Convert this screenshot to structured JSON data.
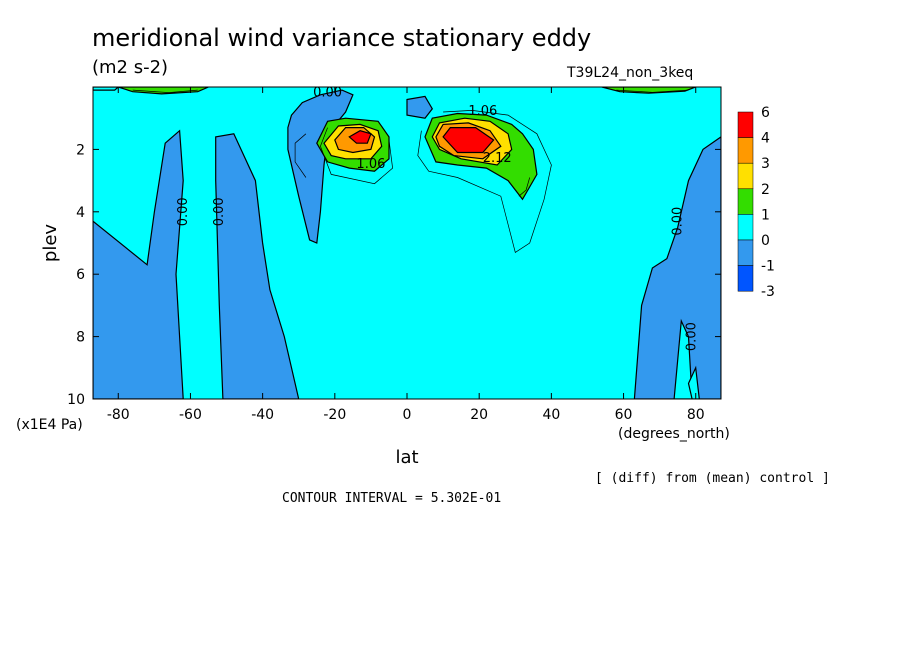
{
  "title": "meridional wind variance  stationary eddy",
  "units": "(m2 s-2)",
  "run_label": "T39L24_non_3keq",
  "footer_note": "[ (diff) from (mean) control ]",
  "contour_interval_text": "CONTOUR INTERVAL = 5.302E-01",
  "chart_data": {
    "type": "heatmap",
    "xlabel": "lat",
    "x_unit": "(degrees_north)",
    "ylabel": "plev",
    "y_unit": "(x1E4 Pa)",
    "xlim": [
      -87,
      87
    ],
    "ylim": [
      10,
      0
    ],
    "x_ticks": [
      -80,
      -60,
      -40,
      -20,
      0,
      20,
      40,
      60,
      80
    ],
    "x_tick_labels": [
      "-80",
      "-60",
      "-40",
      "-20",
      "0",
      "20",
      "40",
      "60",
      "80"
    ],
    "y_ticks": [
      2,
      4,
      6,
      8,
      10
    ],
    "y_tick_labels": [
      "2",
      "4",
      "6",
      "8",
      "10"
    ],
    "contour_interval": 0.5302,
    "colorbar": {
      "boundaries": [
        "6",
        "4",
        "3",
        "2",
        "1",
        "0",
        "-1",
        "-3"
      ],
      "colors": [
        "#ff0000",
        "#ff9900",
        "#ffe000",
        "#33dd00",
        "#00ffff",
        "#3399ee",
        "#0055ff"
      ]
    },
    "contour_labels": [
      {
        "text": "0.00",
        "x": -22,
        "y": 0.3
      },
      {
        "text": "1.06",
        "x": 21,
        "y": 0.9
      },
      {
        "text": "1.06",
        "x": -10,
        "y": 2.6
      },
      {
        "text": "2.12",
        "x": 25,
        "y": 2.4
      },
      {
        "text": "0.00",
        "x": -61,
        "y": 4.0
      },
      {
        "text": "0.00",
        "x": -51,
        "y": 4.0
      },
      {
        "text": "0.00",
        "x": 76,
        "y": 4.3
      },
      {
        "text": "0.00",
        "x": 80,
        "y": 8.0
      }
    ],
    "regions": [
      {
        "level": "-1..0",
        "color": "#3399ee",
        "polygon": [
          [
            -87,
            4.3
          ],
          [
            -72,
            5.7
          ],
          [
            -70,
            4
          ],
          [
            -67,
            1.8
          ],
          [
            -63,
            1.4
          ],
          [
            -62,
            3
          ],
          [
            -64,
            6
          ],
          [
            -63,
            8
          ],
          [
            -62,
            10
          ],
          [
            -87,
            10
          ]
        ]
      },
      {
        "level": "-1..0",
        "color": "#3399ee",
        "polygon": [
          [
            -51,
            10
          ],
          [
            -52,
            7
          ],
          [
            -53,
            3
          ],
          [
            -53,
            1.6
          ],
          [
            -48,
            1.5
          ],
          [
            -42,
            3
          ],
          [
            -40,
            5
          ],
          [
            -38,
            6.5
          ],
          [
            -34,
            8
          ],
          [
            -30,
            10
          ]
        ]
      },
      {
        "level": "-1..0",
        "color": "#3399ee",
        "polygon": [
          [
            -32,
            0.9
          ],
          [
            -29,
            0.5
          ],
          [
            -24,
            0.25
          ],
          [
            -18,
            0.1
          ],
          [
            -15,
            0.25
          ],
          [
            -17,
            0.8
          ],
          [
            -22,
            1.5
          ],
          [
            -23,
            2.5
          ],
          [
            -24,
            4
          ],
          [
            -25,
            5.0
          ],
          [
            -27,
            4.9
          ],
          [
            -30,
            3.5
          ],
          [
            -33,
            2
          ],
          [
            -33,
            1.3
          ]
        ]
      },
      {
        "level": "-1..0",
        "color": "#3399ee",
        "polygon": [
          [
            0,
            0.4
          ],
          [
            5,
            0.3
          ],
          [
            7,
            0.7
          ],
          [
            5,
            1.0
          ],
          [
            0,
            0.9
          ]
        ]
      },
      {
        "level": "-1..0",
        "color": "#3399ee",
        "polygon": [
          [
            87,
            1.6
          ],
          [
            82,
            2
          ],
          [
            78,
            3
          ],
          [
            75,
            4.5
          ],
          [
            72,
            5.5
          ],
          [
            68,
            5.8
          ],
          [
            65,
            7
          ],
          [
            63,
            10
          ],
          [
            87,
            10
          ]
        ]
      },
      {
        "level": "0..1",
        "color": "#00ffff",
        "polygon": [
          [
            74,
            10
          ],
          [
            76,
            7.5
          ],
          [
            78,
            8
          ],
          [
            79,
            10
          ]
        ]
      },
      {
        "level": "0..1",
        "color": "#00ffff",
        "polygon": [
          [
            79,
            10
          ],
          [
            78,
            9.5
          ],
          [
            80,
            9.0
          ],
          [
            81,
            10
          ]
        ]
      },
      {
        "level": "1..2",
        "color": "#33dd00",
        "polygon": [
          [
            -25,
            1.8
          ],
          [
            -22,
            1.1
          ],
          [
            -17,
            1.0
          ],
          [
            -8,
            1.1
          ],
          [
            -5,
            1.6
          ],
          [
            -5,
            2.3
          ],
          [
            -9,
            2.7
          ],
          [
            -16,
            2.6
          ],
          [
            -22,
            2.4
          ]
        ]
      },
      {
        "level": "2..3",
        "color": "#ffe000",
        "polygon": [
          [
            -23,
            1.8
          ],
          [
            -19,
            1.25
          ],
          [
            -13,
            1.2
          ],
          [
            -8,
            1.4
          ],
          [
            -7,
            1.9
          ],
          [
            -10,
            2.3
          ],
          [
            -17,
            2.3
          ],
          [
            -21,
            2.2
          ]
        ]
      },
      {
        "level": "3..4",
        "color": "#ff9900",
        "polygon": [
          [
            -20,
            1.7
          ],
          [
            -17,
            1.3
          ],
          [
            -12,
            1.3
          ],
          [
            -9,
            1.6
          ],
          [
            -10,
            2.0
          ],
          [
            -15,
            2.1
          ],
          [
            -19,
            2.0
          ]
        ]
      },
      {
        "level": "4..6",
        "color": "#ff0000",
        "polygon": [
          [
            -16,
            1.6
          ],
          [
            -13,
            1.4
          ],
          [
            -10,
            1.5
          ],
          [
            -11,
            1.8
          ],
          [
            -14,
            1.8
          ]
        ]
      },
      {
        "level": "1..2",
        "color": "#33dd00",
        "polygon": [
          [
            5,
            1.6
          ],
          [
            7,
            1.0
          ],
          [
            14,
            0.85
          ],
          [
            22,
            0.9
          ],
          [
            29,
            1.2
          ],
          [
            32,
            1.5
          ],
          [
            35,
            2.0
          ],
          [
            36,
            2.8
          ],
          [
            32,
            3.6
          ],
          [
            28,
            3.0
          ],
          [
            22,
            2.6
          ],
          [
            14,
            2.5
          ],
          [
            8,
            2.4
          ]
        ]
      },
      {
        "level": "2..3",
        "color": "#ffe000",
        "polygon": [
          [
            7,
            1.6
          ],
          [
            9,
            1.15
          ],
          [
            16,
            1.0
          ],
          [
            23,
            1.1
          ],
          [
            28,
            1.5
          ],
          [
            29,
            2.0
          ],
          [
            25,
            2.5
          ],
          [
            15,
            2.3
          ],
          [
            9,
            2.0
          ]
        ]
      },
      {
        "level": "3..4",
        "color": "#ff9900",
        "polygon": [
          [
            8,
            1.6
          ],
          [
            10,
            1.2
          ],
          [
            17,
            1.15
          ],
          [
            23,
            1.4
          ],
          [
            26,
            1.9
          ],
          [
            21,
            2.3
          ],
          [
            13,
            2.2
          ],
          [
            9,
            1.9
          ]
        ]
      },
      {
        "level": "4..6",
        "color": "#ff0000",
        "polygon": [
          [
            10,
            1.6
          ],
          [
            12,
            1.3
          ],
          [
            19,
            1.3
          ],
          [
            24,
            1.7
          ],
          [
            21,
            2.1
          ],
          [
            14,
            2.1
          ]
        ]
      },
      {
        "level": "0..1",
        "color": "#00ffff",
        "polygon": [
          [
            -87,
            0
          ],
          [
            -80,
            0
          ],
          [
            -81,
            0.1
          ],
          [
            -87,
            0.1
          ]
        ]
      },
      {
        "level": "1..2",
        "color": "#33dd00",
        "polygon": [
          [
            -80,
            0
          ],
          [
            -55,
            0
          ],
          [
            -58,
            0.15
          ],
          [
            -68,
            0.22
          ],
          [
            -76,
            0.15
          ]
        ]
      },
      {
        "level": "1..2",
        "color": "#33dd00",
        "polygon": [
          [
            54,
            0
          ],
          [
            80,
            0
          ],
          [
            77,
            0.13
          ],
          [
            67,
            0.2
          ],
          [
            59,
            0.15
          ]
        ]
      }
    ],
    "thin_contours": [
      [
        [
          -28,
          1.5
        ],
        [
          -31,
          1.8
        ],
        [
          -31,
          2.4
        ],
        [
          -28,
          2.9
        ]
      ],
      [
        [
          -22,
          1.3
        ],
        [
          -24,
          1.9
        ],
        [
          -21,
          2.8
        ],
        [
          -9,
          3.1
        ],
        [
          -4,
          2.6
        ],
        [
          -5,
          1.7
        ]
      ],
      [
        [
          4,
          1.4
        ],
        [
          3,
          2.2
        ],
        [
          6,
          2.7
        ],
        [
          14,
          2.9
        ],
        [
          26,
          3.5
        ],
        [
          30,
          5.3
        ],
        [
          34,
          5.0
        ],
        [
          38,
          3.6
        ],
        [
          40,
          2.5
        ],
        [
          36,
          1.5
        ],
        [
          28,
          0.9
        ],
        [
          18,
          0.75
        ],
        [
          10,
          0.8
        ]
      ],
      [
        [
          34,
          2.9
        ],
        [
          33,
          3.3
        ],
        [
          31,
          3.5
        ]
      ],
      [
        [
          -76,
          0.1
        ],
        [
          -66,
          0.18
        ],
        [
          -58,
          0.1
        ]
      ],
      [
        [
          58,
          0.1
        ],
        [
          68,
          0.17
        ],
        [
          78,
          0.1
        ]
      ]
    ]
  }
}
